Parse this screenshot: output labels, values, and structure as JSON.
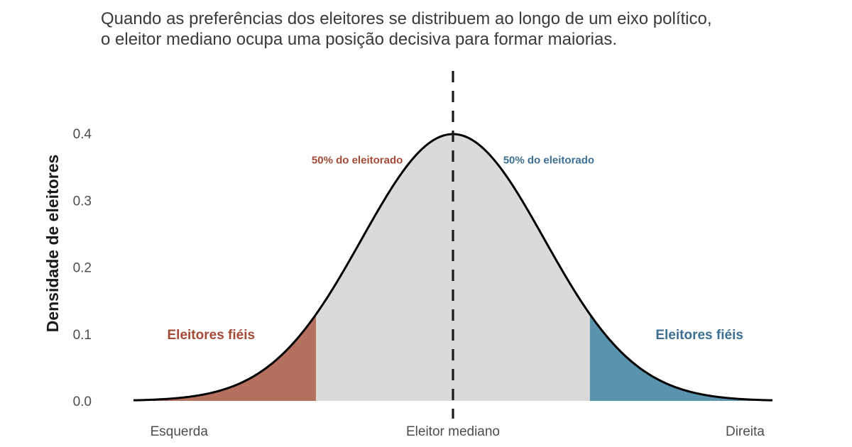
{
  "chart_data": {
    "type": "area",
    "subtitle_lines": [
      "Quando as preferências dos eleitores se distribuem ao longo de um eixo político,",
      "o eleitor mediano ocupa uma posição decisiva para formar maiorias."
    ],
    "title": "",
    "xlabel": "",
    "ylabel": "Densidade de eleitores",
    "distribution": {
      "shape": "normal",
      "mean": 0,
      "sd": 1
    },
    "xlim": [
      -3.5,
      3.5
    ],
    "ylim": [
      0,
      0.4
    ],
    "yticks": [
      0.0,
      0.1,
      0.2,
      0.3,
      0.4
    ],
    "ytick_labels": [
      "0.0",
      "0.1",
      "0.2",
      "0.3",
      "0.4"
    ],
    "x_tick_positions": [
      -3.0,
      0.0,
      3.2
    ],
    "x_tick_labels": [
      "Esquerda",
      "Eleitor mediano",
      "Direita"
    ],
    "median_line_x": 0,
    "regions": [
      {
        "name": "left-tail",
        "from": -3.5,
        "to": -1.5,
        "color": "#b5705f"
      },
      {
        "name": "middle",
        "from": -1.5,
        "to": 1.5,
        "color": "#dadada"
      },
      {
        "name": "right-tail",
        "from": 1.5,
        "to": 3.5,
        "color": "#5a93ad"
      }
    ],
    "annotations": [
      {
        "text": "50% do eleitorado",
        "x": -0.55,
        "y": 0.36,
        "color": "#a34a36",
        "size": "small",
        "anchor": "end"
      },
      {
        "text": "50% do eleitorado",
        "x": 0.55,
        "y": 0.36,
        "color": "#3d6f91",
        "size": "small",
        "anchor": "start"
      },
      {
        "text": "Eleitores fiéis",
        "x": -2.65,
        "y": 0.1,
        "color": "#a34a36",
        "size": "big",
        "anchor": "middle"
      },
      {
        "text": "Eleitores fiéis",
        "x": 2.7,
        "y": 0.1,
        "color": "#3d6f91",
        "size": "big",
        "anchor": "middle"
      }
    ],
    "curve_color": "#000000",
    "median_line_color": "#1a1a1a",
    "grid": false,
    "legend": "none"
  }
}
